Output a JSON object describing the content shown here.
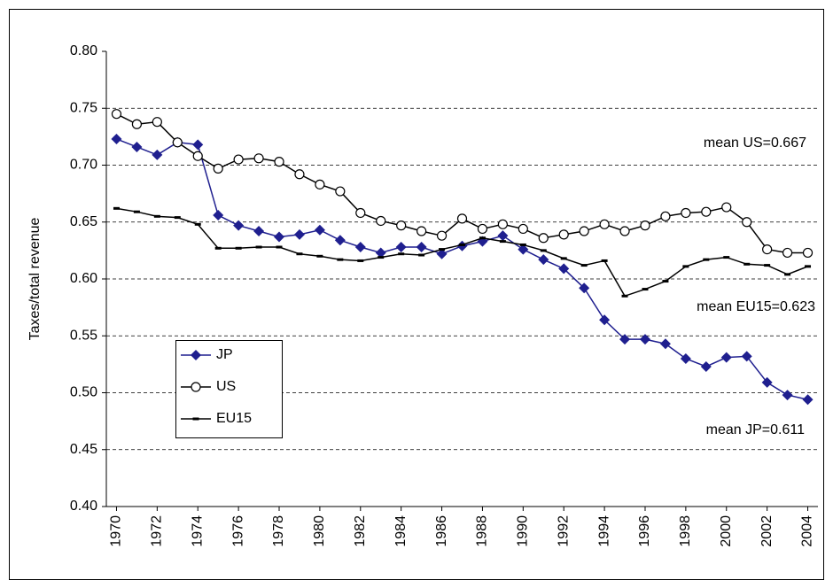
{
  "chart_data": {
    "type": "line",
    "y_label": "Taxes/total revenue",
    "x": [
      1970,
      1971,
      1972,
      1973,
      1974,
      1975,
      1976,
      1977,
      1978,
      1979,
      1980,
      1981,
      1982,
      1983,
      1984,
      1985,
      1986,
      1987,
      1988,
      1989,
      1990,
      1991,
      1992,
      1993,
      1994,
      1995,
      1996,
      1997,
      1998,
      1999,
      2000,
      2001,
      2002,
      2003,
      2004
    ],
    "series": [
      {
        "name": "JP",
        "color": "#1f1f8f",
        "marker": "diamond",
        "values": [
          0.723,
          0.716,
          0.709,
          0.72,
          0.718,
          0.656,
          0.647,
          0.642,
          0.637,
          0.639,
          0.643,
          0.634,
          0.628,
          0.623,
          0.628,
          0.628,
          0.622,
          0.629,
          0.633,
          0.638,
          0.626,
          0.617,
          0.609,
          0.592,
          0.564,
          0.547,
          0.547,
          0.543,
          0.53,
          0.523,
          0.531,
          0.532,
          0.509,
          0.498,
          0.494
        ]
      },
      {
        "name": "US",
        "color": "#000000",
        "marker": "circle",
        "values": [
          0.745,
          0.736,
          0.738,
          0.72,
          0.708,
          0.697,
          0.705,
          0.706,
          0.703,
          0.692,
          0.683,
          0.677,
          0.658,
          0.651,
          0.647,
          0.642,
          0.638,
          0.653,
          0.644,
          0.648,
          0.644,
          0.636,
          0.639,
          0.642,
          0.648,
          0.642,
          0.647,
          0.655,
          0.658,
          0.659,
          0.663,
          0.65,
          0.626,
          0.623,
          0.623
        ]
      },
      {
        "name": "EU15",
        "color": "#000000",
        "marker": "dash",
        "values": [
          0.662,
          0.659,
          0.655,
          0.654,
          0.648,
          0.627,
          0.627,
          0.628,
          0.628,
          0.622,
          0.62,
          0.617,
          0.616,
          0.619,
          0.622,
          0.621,
          0.626,
          0.63,
          0.636,
          0.633,
          0.63,
          0.625,
          0.618,
          0.612,
          0.616,
          0.585,
          0.591,
          0.598,
          0.611,
          0.617,
          0.619,
          0.613,
          0.612,
          0.604,
          0.611
        ]
      }
    ],
    "xlim": [
      1969.5,
      2004.5
    ],
    "xticks": [
      1970,
      1972,
      1974,
      1976,
      1978,
      1980,
      1982,
      1984,
      1986,
      1988,
      1990,
      1992,
      1994,
      1996,
      1998,
      2000,
      2002,
      2004
    ],
    "ylim": [
      0.4,
      0.8
    ],
    "yticks": [
      {
        "value": 0.4,
        "label": "0.40"
      },
      {
        "value": 0.45,
        "label": "0.45"
      },
      {
        "value": 0.5,
        "label": "0.50"
      },
      {
        "value": 0.55,
        "label": "0.55"
      },
      {
        "value": 0.6,
        "label": "0.60"
      },
      {
        "value": 0.65,
        "label": "0.65"
      },
      {
        "value": 0.7,
        "label": "0.70"
      },
      {
        "value": 0.75,
        "label": "0.75"
      },
      {
        "value": 0.8,
        "label": "0.80"
      }
    ],
    "grid": true,
    "legend": "left",
    "annotations": [
      "mean US=0.667",
      "mean EU15=0.623",
      "mean JP=0.611"
    ]
  }
}
